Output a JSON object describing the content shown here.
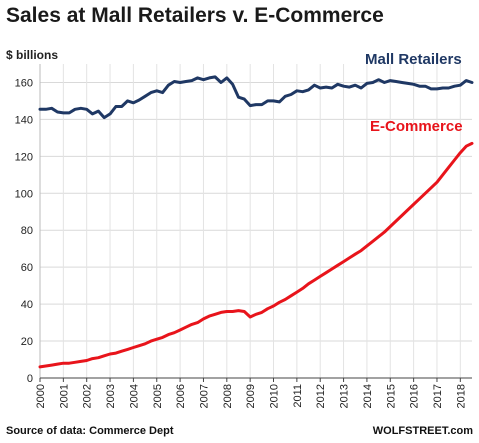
{
  "chart_data": {
    "type": "line",
    "title": "Sales at Mall Retailers v. E-Commerce",
    "ylabel": "$ billions",
    "ylim": [
      0,
      170
    ],
    "yticks": [
      0,
      20,
      40,
      60,
      80,
      100,
      120,
      140,
      160
    ],
    "xlim": [
      2000,
      2018.5
    ],
    "xticks": [
      "2000",
      "2001",
      "2002",
      "2003",
      "2004",
      "2005",
      "2006",
      "2007",
      "2008",
      "2009",
      "2010",
      "2011",
      "2012",
      "2013",
      "2014",
      "2015",
      "2016",
      "2017",
      "2018"
    ],
    "grid": true,
    "series": [
      {
        "name": "Mall Retailers",
        "color": "#1f3864",
        "x": [
          2000.0,
          2000.25,
          2000.5,
          2000.75,
          2001.0,
          2001.25,
          2001.5,
          2001.75,
          2002.0,
          2002.25,
          2002.5,
          2002.75,
          2003.0,
          2003.25,
          2003.5,
          2003.75,
          2004.0,
          2004.25,
          2004.5,
          2004.75,
          2005.0,
          2005.25,
          2005.5,
          2005.75,
          2006.0,
          2006.25,
          2006.5,
          2006.75,
          2007.0,
          2007.25,
          2007.5,
          2007.75,
          2008.0,
          2008.25,
          2008.5,
          2008.75,
          2009.0,
          2009.25,
          2009.5,
          2009.75,
          2010.0,
          2010.25,
          2010.5,
          2010.75,
          2011.0,
          2011.25,
          2011.5,
          2011.75,
          2012.0,
          2012.25,
          2012.5,
          2012.75,
          2013.0,
          2013.25,
          2013.5,
          2013.75,
          2014.0,
          2014.25,
          2014.5,
          2014.75,
          2015.0,
          2015.25,
          2015.5,
          2015.75,
          2016.0,
          2016.25,
          2016.5,
          2016.75,
          2017.0,
          2017.25,
          2017.5,
          2017.75,
          2018.0,
          2018.25,
          2018.5
        ],
        "values": [
          145.5,
          145.5,
          146,
          144,
          143.5,
          143.5,
          145.5,
          146,
          145.5,
          143,
          144.5,
          141,
          143,
          147,
          147,
          150,
          149,
          150.5,
          152.5,
          154.5,
          155.5,
          154.5,
          158.5,
          160.5,
          160,
          160.5,
          161,
          162.5,
          161.5,
          162.5,
          163,
          160,
          162.5,
          159,
          152,
          151,
          147.5,
          148,
          148,
          150,
          150,
          149.5,
          152.5,
          153.5,
          155.5,
          155,
          156,
          158.5,
          157,
          157.5,
          157,
          159,
          158,
          157.5,
          158.5,
          157,
          159.5,
          160,
          161.5,
          160,
          161,
          160.5,
          160,
          159.5,
          159,
          158,
          158,
          156.5,
          156.5,
          157,
          157,
          158,
          158.5,
          161,
          160
        ]
      },
      {
        "name": "E-Commerce",
        "color": "#e8141b",
        "x": [
          2000.0,
          2000.25,
          2000.5,
          2000.75,
          2001.0,
          2001.25,
          2001.5,
          2001.75,
          2002.0,
          2002.25,
          2002.5,
          2002.75,
          2003.0,
          2003.25,
          2003.5,
          2003.75,
          2004.0,
          2004.25,
          2004.5,
          2004.75,
          2005.0,
          2005.25,
          2005.5,
          2005.75,
          2006.0,
          2006.25,
          2006.5,
          2006.75,
          2007.0,
          2007.25,
          2007.5,
          2007.75,
          2008.0,
          2008.25,
          2008.5,
          2008.75,
          2009.0,
          2009.25,
          2009.5,
          2009.75,
          2010.0,
          2010.25,
          2010.5,
          2010.75,
          2011.0,
          2011.25,
          2011.5,
          2011.75,
          2012.0,
          2012.25,
          2012.5,
          2012.75,
          2013.0,
          2013.25,
          2013.5,
          2013.75,
          2014.0,
          2014.25,
          2014.5,
          2014.75,
          2015.0,
          2015.25,
          2015.5,
          2015.75,
          2016.0,
          2016.25,
          2016.5,
          2016.75,
          2017.0,
          2017.25,
          2017.5,
          2017.75,
          2018.0,
          2018.25,
          2018.5
        ],
        "values": [
          6,
          6.5,
          7,
          7.5,
          8,
          8,
          8.5,
          9,
          9.5,
          10.5,
          11,
          12,
          13,
          13.5,
          14.5,
          15.5,
          16.5,
          17.5,
          18.5,
          20,
          21,
          22,
          23.5,
          24.5,
          26,
          27.5,
          29,
          30,
          32,
          33.5,
          34.5,
          35.5,
          36,
          36,
          36.5,
          36,
          33,
          34.5,
          35.5,
          37.5,
          39,
          41,
          42.5,
          44.5,
          46.5,
          48.5,
          51,
          53,
          55,
          57,
          59,
          61,
          63,
          65,
          67,
          69,
          71.5,
          74,
          76.5,
          79,
          82,
          85,
          88,
          91,
          94,
          97,
          100,
          103,
          106,
          110,
          114,
          118,
          122,
          125.5,
          127
        ]
      }
    ],
    "labels": {
      "mall": "Mall Retailers",
      "ecom": "E-Commerce"
    },
    "footer": {
      "source": "Source of data: Commerce Dept",
      "brand": "WOLFSTREET.com"
    }
  }
}
